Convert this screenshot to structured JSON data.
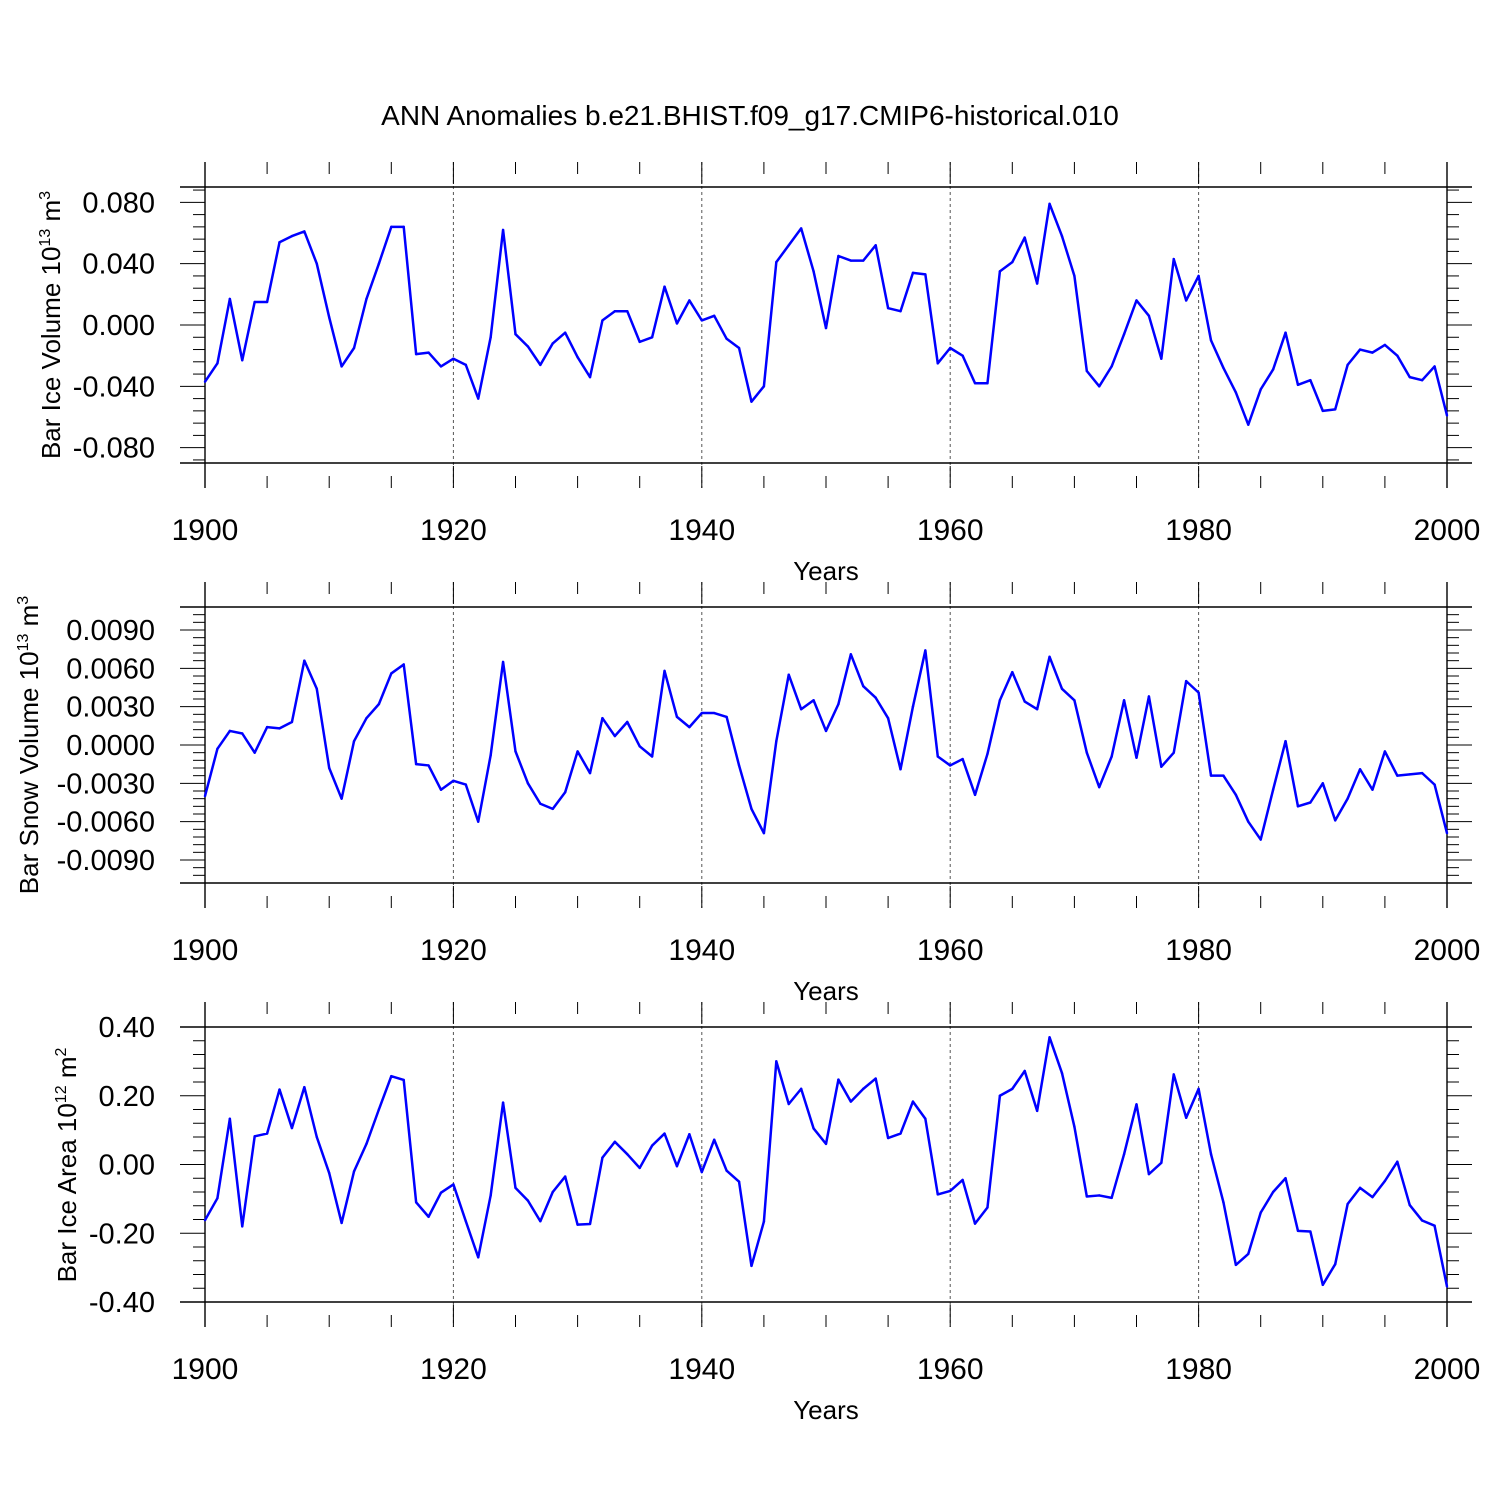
{
  "figure": {
    "title": "ANN Anomalies b.e21.BHIST.f09_g17.CMIP6-historical.010",
    "line_color": "#0000ff",
    "axis_color": "#000000",
    "gridline_color": "#555555"
  },
  "chart_data": [
    {
      "type": "line",
      "title": "ANN Anomalies b.e21.BHIST.f09_g17.CMIP6-historical.010",
      "ylabel_parts": [
        "Bar Ice Volume 10",
        "13",
        " m",
        "3"
      ],
      "xlabel": "Years",
      "xlim": [
        1900,
        2000
      ],
      "ylim": [
        -0.09,
        0.09
      ],
      "xticks": [
        1900,
        1920,
        1940,
        1960,
        1980,
        2000
      ],
      "yticks": [
        -0.08,
        -0.04,
        0.0,
        0.04,
        0.08
      ],
      "ytick_labels": [
        "-0.080",
        "-0.040",
        "0.000",
        "0.040",
        "0.080"
      ],
      "grid": "vertical dashed at major x ticks",
      "series": [
        {
          "name": "Bar Ice Volume",
          "x": [
            1900,
            1901,
            1902,
            1903,
            1904,
            1905,
            1906,
            1907,
            1908,
            1909,
            1910,
            1911,
            1912,
            1913,
            1914,
            1915,
            1916,
            1917,
            1918,
            1919,
            1920,
            1921,
            1922,
            1923,
            1924,
            1925,
            1926,
            1927,
            1928,
            1929,
            1930,
            1931,
            1932,
            1933,
            1934,
            1935,
            1936,
            1937,
            1938,
            1939,
            1940,
            1941,
            1942,
            1943,
            1944,
            1945,
            1946,
            1947,
            1948,
            1949,
            1950,
            1951,
            1952,
            1953,
            1954,
            1955,
            1956,
            1957,
            1958,
            1959,
            1960,
            1961,
            1962,
            1963,
            1964,
            1965,
            1966,
            1967,
            1968,
            1969,
            1970,
            1971,
            1972,
            1973,
            1974,
            1975,
            1976,
            1977,
            1978,
            1979,
            1980,
            1981,
            1982,
            1983,
            1984,
            1985,
            1986,
            1987,
            1988,
            1989,
            1990,
            1991,
            1992,
            1993,
            1994,
            1995,
            1996,
            1997,
            1998,
            1999,
            2000
          ],
          "y": [
            -0.037,
            -0.025,
            0.017,
            -0.023,
            0.015,
            0.015,
            0.054,
            0.058,
            0.061,
            0.04,
            0.005,
            -0.027,
            -0.015,
            0.017,
            0.04,
            0.064,
            0.064,
            -0.019,
            -0.018,
            -0.027,
            -0.022,
            -0.026,
            -0.048,
            -0.008,
            0.062,
            -0.006,
            -0.014,
            -0.026,
            -0.012,
            -0.005,
            -0.021,
            -0.034,
            0.003,
            0.009,
            0.009,
            -0.011,
            -0.008,
            0.025,
            0.001,
            0.016,
            0.003,
            0.006,
            -0.009,
            -0.015,
            -0.05,
            -0.04,
            0.041,
            0.052,
            0.063,
            0.035,
            -0.002,
            0.045,
            0.042,
            0.042,
            0.052,
            0.011,
            0.009,
            0.034,
            0.033,
            -0.025,
            -0.015,
            -0.02,
            -0.038,
            -0.038,
            0.035,
            0.041,
            0.057,
            0.027,
            0.079,
            0.058,
            0.032,
            -0.03,
            -0.04,
            -0.027,
            -0.006,
            0.016,
            0.006,
            -0.022,
            0.043,
            0.016,
            0.032,
            -0.01,
            -0.028,
            -0.044,
            -0.065,
            -0.042,
            -0.029,
            -0.005,
            -0.039,
            -0.036,
            -0.056,
            -0.055,
            -0.026,
            -0.016,
            -0.018,
            -0.013,
            -0.02,
            -0.034,
            -0.036,
            -0.027,
            -0.059
          ]
        }
      ]
    },
    {
      "type": "line",
      "ylabel_parts": [
        "Bar Snow Volume 10",
        "13",
        " m",
        "3"
      ],
      "xlabel": "Years",
      "xlim": [
        1900,
        2000
      ],
      "ylim": [
        -0.0108,
        0.0108
      ],
      "xticks": [
        1900,
        1920,
        1940,
        1960,
        1980,
        2000
      ],
      "yticks": [
        -0.009,
        -0.006,
        -0.003,
        0.0,
        0.003,
        0.006,
        0.009
      ],
      "ytick_labels": [
        "-0.0090",
        "-0.0060",
        "-0.0030",
        "0.0000",
        "0.0030",
        "0.0060",
        "0.0090"
      ],
      "grid": "vertical dashed at major x ticks",
      "series": [
        {
          "name": "Bar Snow Volume",
          "x": [
            1900,
            1901,
            1902,
            1903,
            1904,
            1905,
            1906,
            1907,
            1908,
            1909,
            1910,
            1911,
            1912,
            1913,
            1914,
            1915,
            1916,
            1917,
            1918,
            1919,
            1920,
            1921,
            1922,
            1923,
            1924,
            1925,
            1926,
            1927,
            1928,
            1929,
            1930,
            1931,
            1932,
            1933,
            1934,
            1935,
            1936,
            1937,
            1938,
            1939,
            1940,
            1941,
            1942,
            1943,
            1944,
            1945,
            1946,
            1947,
            1948,
            1949,
            1950,
            1951,
            1952,
            1953,
            1954,
            1955,
            1956,
            1957,
            1958,
            1959,
            1960,
            1961,
            1962,
            1963,
            1964,
            1965,
            1966,
            1967,
            1968,
            1969,
            1970,
            1971,
            1972,
            1973,
            1974,
            1975,
            1976,
            1977,
            1978,
            1979,
            1980,
            1981,
            1982,
            1983,
            1984,
            1985,
            1986,
            1987,
            1988,
            1989,
            1990,
            1991,
            1992,
            1993,
            1994,
            1995,
            1996,
            1997,
            1998,
            1999,
            2000
          ],
          "y": [
            -0.004,
            -0.0003,
            0.0011,
            0.0009,
            -0.0006,
            0.0014,
            0.0013,
            0.0018,
            0.0066,
            0.0044,
            -0.0018,
            -0.0042,
            0.0003,
            0.0021,
            0.0032,
            0.0056,
            0.0063,
            -0.0015,
            -0.0016,
            -0.0035,
            -0.0028,
            -0.0031,
            -0.006,
            -0.0008,
            0.0065,
            -0.0005,
            -0.003,
            -0.0046,
            -0.005,
            -0.0037,
            -0.0005,
            -0.0022,
            0.0021,
            0.0007,
            0.0018,
            -0.0001,
            -0.0009,
            0.0058,
            0.0022,
            0.0014,
            0.0025,
            0.0025,
            0.0022,
            -0.0016,
            -0.005,
            -0.0069,
            0.0003,
            0.0055,
            0.0028,
            0.0035,
            0.0011,
            0.0032,
            0.0071,
            0.0046,
            0.0037,
            0.0021,
            -0.0019,
            0.003,
            0.0074,
            -0.0009,
            -0.0016,
            -0.0011,
            -0.0039,
            -0.0007,
            0.0035,
            0.0057,
            0.0034,
            0.0028,
            0.0069,
            0.0044,
            0.0035,
            -0.0006,
            -0.0033,
            -0.0009,
            0.0035,
            -0.001,
            0.0038,
            -0.0017,
            -0.0006,
            0.005,
            0.0041,
            -0.0024,
            -0.0024,
            -0.0039,
            -0.006,
            -0.0074,
            -0.0035,
            0.0003,
            -0.0048,
            -0.0045,
            -0.003,
            -0.0059,
            -0.0042,
            -0.0019,
            -0.0035,
            -0.0005,
            -0.0024,
            -0.0023,
            -0.0022,
            -0.0031,
            -0.0069
          ]
        }
      ]
    },
    {
      "type": "line",
      "ylabel_parts": [
        "Bar Ice Area 10",
        "12",
        " m",
        "2"
      ],
      "xlabel": "Years",
      "xlim": [
        1900,
        2000
      ],
      "ylim": [
        -0.4,
        0.4
      ],
      "xticks": [
        1900,
        1920,
        1940,
        1960,
        1980,
        2000
      ],
      "yticks": [
        -0.4,
        -0.2,
        0.0,
        0.2,
        0.4
      ],
      "ytick_labels": [
        "-0.40",
        "-0.20",
        "0.00",
        "0.20",
        "0.40"
      ],
      "grid": "vertical dashed at major x ticks",
      "series": [
        {
          "name": "Bar Ice Area",
          "x": [
            1900,
            1901,
            1902,
            1903,
            1904,
            1905,
            1906,
            1907,
            1908,
            1909,
            1910,
            1911,
            1912,
            1913,
            1914,
            1915,
            1916,
            1917,
            1918,
            1919,
            1920,
            1921,
            1922,
            1923,
            1924,
            1925,
            1926,
            1927,
            1928,
            1929,
            1930,
            1931,
            1932,
            1933,
            1934,
            1935,
            1936,
            1937,
            1938,
            1939,
            1940,
            1941,
            1942,
            1943,
            1944,
            1945,
            1946,
            1947,
            1948,
            1949,
            1950,
            1951,
            1952,
            1953,
            1954,
            1955,
            1956,
            1957,
            1958,
            1959,
            1960,
            1961,
            1962,
            1963,
            1964,
            1965,
            1966,
            1967,
            1968,
            1969,
            1970,
            1971,
            1972,
            1973,
            1974,
            1975,
            1976,
            1977,
            1978,
            1979,
            1980,
            1981,
            1982,
            1983,
            1984,
            1985,
            1986,
            1987,
            1988,
            1989,
            1990,
            1991,
            1992,
            1993,
            1994,
            1995,
            1996,
            1997,
            1998,
            1999,
            2000
          ],
          "y": [
            -0.162,
            -0.098,
            0.133,
            -0.18,
            0.082,
            0.09,
            0.218,
            0.106,
            0.225,
            0.08,
            -0.025,
            -0.17,
            -0.02,
            0.06,
            0.16,
            0.257,
            0.246,
            -0.11,
            -0.152,
            -0.082,
            -0.058,
            -0.165,
            -0.27,
            -0.09,
            0.18,
            -0.068,
            -0.105,
            -0.165,
            -0.08,
            -0.035,
            -0.175,
            -0.173,
            0.02,
            0.066,
            0.03,
            -0.01,
            0.055,
            0.09,
            -0.005,
            0.088,
            -0.022,
            0.072,
            -0.018,
            -0.05,
            -0.295,
            -0.166,
            0.3,
            0.176,
            0.22,
            0.105,
            0.06,
            0.247,
            0.183,
            0.22,
            0.25,
            0.077,
            0.09,
            0.183,
            0.133,
            -0.087,
            -0.077,
            -0.045,
            -0.172,
            -0.125,
            0.2,
            0.22,
            0.272,
            0.156,
            0.37,
            0.266,
            0.11,
            -0.093,
            -0.09,
            -0.097,
            0.03,
            0.175,
            -0.028,
            0.005,
            0.262,
            0.136,
            0.22,
            0.03,
            -0.11,
            -0.292,
            -0.26,
            -0.14,
            -0.08,
            -0.04,
            -0.193,
            -0.195,
            -0.35,
            -0.29,
            -0.115,
            -0.068,
            -0.095,
            -0.048,
            0.008,
            -0.118,
            -0.163,
            -0.178,
            -0.355
          ]
        }
      ]
    }
  ]
}
